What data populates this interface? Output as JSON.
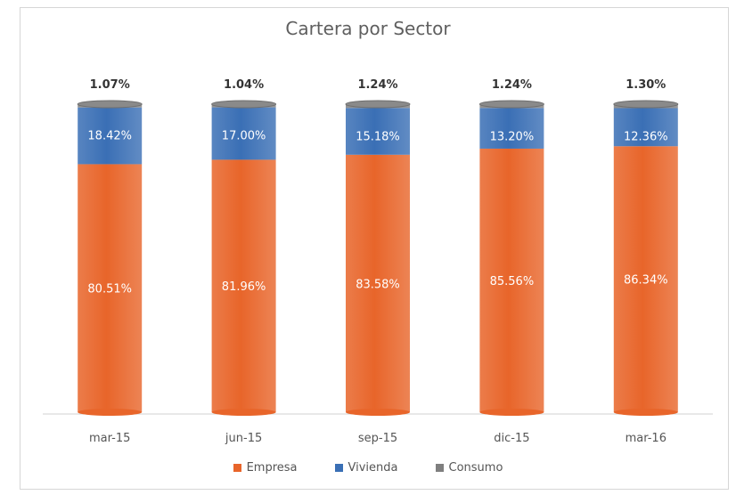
{
  "chart_data": {
    "type": "bar",
    "stacked": true,
    "title": "Cartera por Sector",
    "categories": [
      "mar-15",
      "jun-15",
      "sep-15",
      "dic-15",
      "mar-16"
    ],
    "series": [
      {
        "name": "Empresa",
        "values": [
          80.51,
          81.96,
          83.58,
          85.56,
          86.34
        ],
        "color": "#e8652a"
      },
      {
        "name": "Vivienda",
        "values": [
          18.42,
          17.0,
          15.18,
          13.2,
          12.36
        ],
        "color": "#3a6fb5"
      },
      {
        "name": "Consumo",
        "values": [
          1.07,
          1.04,
          1.24,
          1.24,
          1.3
        ],
        "color": "#7f7f7f"
      }
    ],
    "data_labels": {
      "Empresa": [
        "80.51%",
        "81.96%",
        "83.58%",
        "85.56%",
        "86.34%"
      ],
      "Vivienda": [
        "18.42%",
        "17.00%",
        "15.18%",
        "13.20%",
        "12.36%"
      ],
      "Consumo": [
        "1.07%",
        "1.04%",
        "1.24%",
        "1.24%",
        "1.30%"
      ]
    },
    "ylim": [
      0,
      100
    ],
    "legend_position": "bottom",
    "grid": false
  }
}
